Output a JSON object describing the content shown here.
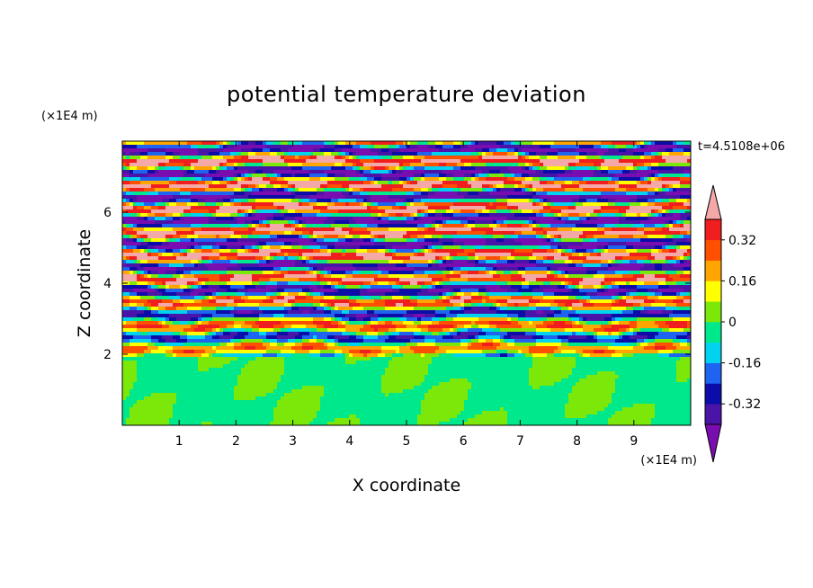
{
  "chart_data": {
    "type": "heatmap",
    "title": "potential temperature deviation",
    "time_label": "t=4.5108e+06",
    "xlabel": "X coordinate",
    "ylabel": "Z coordinate",
    "x_unit": "(×1E4 m)",
    "y_unit": "(×1E4 m)",
    "xlim": [
      0,
      10
    ],
    "ylim": [
      0,
      8
    ],
    "x_ticks": [
      1,
      2,
      3,
      4,
      5,
      6,
      7,
      8,
      9
    ],
    "y_ticks": [
      2,
      4,
      6
    ],
    "x_tick_labels": [
      "1",
      "2",
      "3",
      "4",
      "5",
      "6",
      "7",
      "8",
      "9"
    ],
    "y_tick_labels": [
      "2",
      "4",
      "6"
    ],
    "grid": false,
    "colorbar": {
      "placement": "right",
      "levels": [
        -0.4,
        -0.32,
        -0.24,
        -0.16,
        -0.08,
        0,
        0.08,
        0.16,
        0.24,
        0.32,
        0.4
      ],
      "labels": [
        "0.32",
        "0.16",
        "0",
        "-0.16",
        "-0.32"
      ],
      "label_values": [
        0.32,
        0.16,
        0,
        -0.16,
        -0.32
      ],
      "colors": [
        "#7a0db0",
        "#4a14a8",
        "#0c0ca8",
        "#1e64f0",
        "#00d2f0",
        "#00e88c",
        "#7ce80a",
        "#ffff00",
        "#ffa500",
        "#ff5000",
        "#f01e1e",
        "#f4a8a8"
      ]
    },
    "description_bands": {
      "lower_layer_z": [
        0,
        2
      ],
      "lower_layer_value_range": [
        -0.08,
        0.08
      ],
      "upper_layer_z": [
        2,
        8
      ],
      "upper_layer_value_range": [
        -0.4,
        0.4
      ]
    }
  }
}
